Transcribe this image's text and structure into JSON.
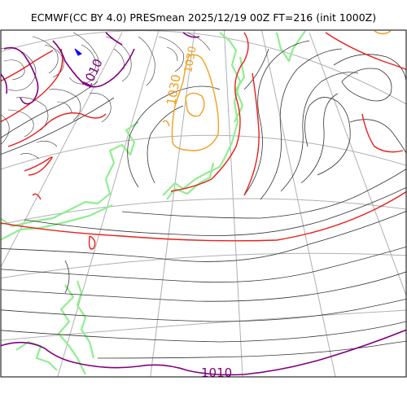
{
  "title": "ECMWF(CC BY 4.0) PRESmean 2025/12/19 00Z FT=216 (init 1000Z)",
  "contour_labels": {
    "purple_1010_bottom": "1010",
    "purple_1010_top": "1010",
    "orange_1030": "1030",
    "orange_1030_small": "1030"
  },
  "colors": {
    "isobar": "#333333",
    "red_isobar": "#e8201c",
    "purple_isobar": "#800080",
    "orange_isobar": "#f0a020",
    "coastline": "#90ee90",
    "graticule": "#b0b0b0",
    "low_marker": "#0000ff"
  }
}
